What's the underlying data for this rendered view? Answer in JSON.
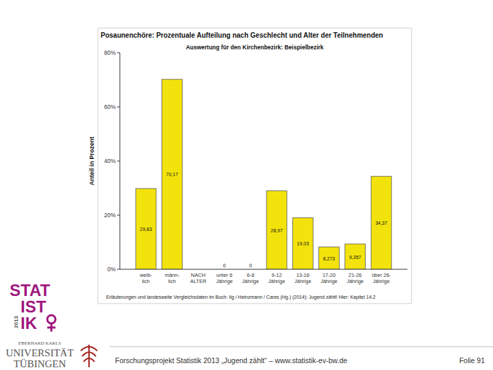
{
  "chart_data": {
    "type": "bar",
    "title": "Posaunenchöre: Prozentuale Aufteilung nach Geschlecht und Alter der Teilnehmenden",
    "subtitle": "Auswertung für den Kirchenbezirk: Beispielbezirk",
    "y_label": "Anteil in Prozent",
    "note": "Erläuterungen und landesweite Vergleichsdaten im Buch: Ilg / Heinzmann / Cares (Hg.) (2014): Jugend zählt! Hier: Kapitel 14.2",
    "categories": [
      "weib-\nlich",
      "männ-\nlich",
      "NACH\nALTER",
      "unter 6\nJährige",
      "6-8\nJährige",
      "9-12\nJährige",
      "13-16\nJährige",
      "17-20\nJährige",
      "21-26\nJährige",
      "über 26-\nJährige"
    ],
    "values": [
      29.83,
      70.17,
      null,
      0,
      0,
      28.97,
      19.03,
      8.273,
      9.357,
      34.37
    ],
    "value_labels": [
      "29,83",
      "70,17",
      null,
      "0",
      "0",
      "28,97",
      "19,03",
      "8,273",
      "9,357",
      "34,37"
    ],
    "color": "#f3e30c",
    "ylim": [
      0,
      80
    ],
    "yticks": [
      {
        "value": 0,
        "label": "0%"
      },
      {
        "value": 20,
        "label": "20%"
      },
      {
        "value": 40,
        "label": "40%"
      },
      {
        "value": 60,
        "label": "60%"
      },
      {
        "value": 80,
        "label": "80%"
      }
    ],
    "grid": false,
    "data_labels": true
  },
  "logo": {
    "lines": [
      "STAT",
      "IST",
      "IK"
    ],
    "year": "2013"
  },
  "university": [
    "EBERHARD KARLS",
    "UNIVERSITÄT",
    "TÜBINGEN"
  ],
  "footer": {
    "text": "Forschungsprojekt Statistik 2013 „Jugend zählt“ – www.statistik-ev-bw.de",
    "page": "Folie 91"
  }
}
